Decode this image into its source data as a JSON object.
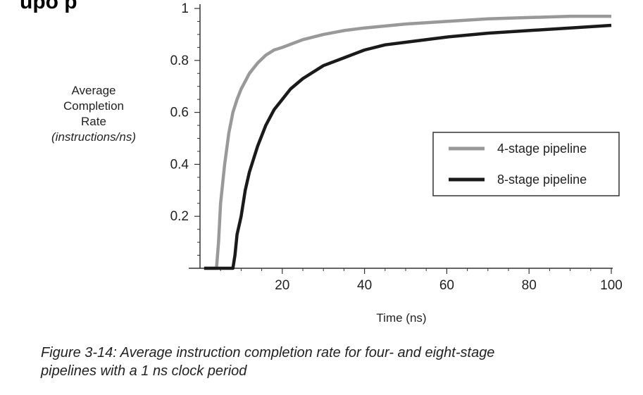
{
  "header_fragment": "upo p",
  "caption": {
    "line1": "Figure 3-14: Average instruction completion rate for four- and eight-stage",
    "line2": "pipelines with a 1 ns clock period"
  },
  "colors": {
    "series_4stage": "#999999",
    "series_8stage": "#1a1a1a",
    "axis": "#333333",
    "text": "#222222"
  },
  "chart_data": {
    "type": "line",
    "title": "",
    "xlabel": "Time (ns)",
    "ylabel_lines": [
      "Average",
      "Completion",
      "Rate"
    ],
    "ylabel_units": "(instructions/ns)",
    "xlim": [
      0,
      100
    ],
    "ylim": [
      0,
      1
    ],
    "xticks": [
      20,
      40,
      60,
      80,
      100
    ],
    "xtick_labels": [
      "20",
      "40",
      "60",
      "80",
      "100"
    ],
    "yticks": [
      0.2,
      0.4,
      0.6,
      0.8,
      1
    ],
    "ytick_labels": [
      "0.2",
      "0.4",
      "0.6",
      "0.8",
      "1"
    ],
    "grid": false,
    "legend_position": "right",
    "series": [
      {
        "name": "4-stage pipeline",
        "color": "#999999",
        "points": [
          [
            1,
            0
          ],
          [
            4,
            0
          ],
          [
            4.5,
            0.1
          ],
          [
            5,
            0.25
          ],
          [
            6,
            0.4
          ],
          [
            7,
            0.52
          ],
          [
            8,
            0.6
          ],
          [
            9,
            0.65
          ],
          [
            10,
            0.69
          ],
          [
            12,
            0.75
          ],
          [
            14,
            0.79
          ],
          [
            16,
            0.82
          ],
          [
            18,
            0.84
          ],
          [
            20,
            0.85
          ],
          [
            25,
            0.88
          ],
          [
            30,
            0.9
          ],
          [
            35,
            0.915
          ],
          [
            40,
            0.925
          ],
          [
            50,
            0.94
          ],
          [
            60,
            0.95
          ],
          [
            70,
            0.96
          ],
          [
            80,
            0.965
          ],
          [
            90,
            0.97
          ],
          [
            100,
            0.97
          ]
        ]
      },
      {
        "name": "8-stage pipeline",
        "color": "#1a1a1a",
        "points": [
          [
            1,
            0
          ],
          [
            8,
            0
          ],
          [
            8.5,
            0.05
          ],
          [
            9,
            0.13
          ],
          [
            10,
            0.2
          ],
          [
            11,
            0.3
          ],
          [
            12,
            0.37
          ],
          [
            14,
            0.47
          ],
          [
            16,
            0.55
          ],
          [
            18,
            0.61
          ],
          [
            20,
            0.65
          ],
          [
            22,
            0.69
          ],
          [
            25,
            0.73
          ],
          [
            30,
            0.78
          ],
          [
            35,
            0.81
          ],
          [
            40,
            0.84
          ],
          [
            45,
            0.86
          ],
          [
            50,
            0.87
          ],
          [
            60,
            0.89
          ],
          [
            70,
            0.905
          ],
          [
            80,
            0.915
          ],
          [
            90,
            0.925
          ],
          [
            100,
            0.935
          ]
        ]
      }
    ]
  }
}
